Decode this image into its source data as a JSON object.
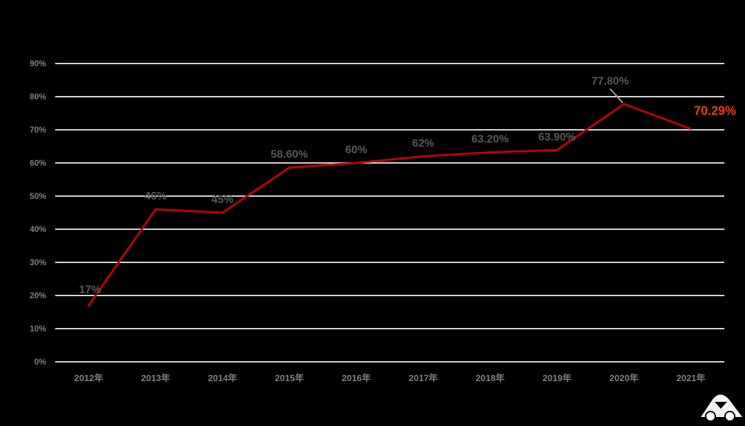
{
  "chart_data": {
    "type": "line",
    "categories": [
      "2012年",
      "2013年",
      "2014年",
      "2015年",
      "2016年",
      "2017年",
      "2018年",
      "2019年",
      "2020年",
      "2021年"
    ],
    "series": [
      {
        "values": [
          17,
          46,
          45,
          58.6,
          60,
          62,
          63.2,
          63.9,
          77.8,
          70.29
        ],
        "data_labels": [
          "17%",
          "46%",
          "45%",
          "58.60%",
          "60%",
          "62%",
          "63.20%",
          "63.90%",
          "77.80%",
          "70.29%"
        ]
      }
    ],
    "ylim": [
      0,
      90
    ],
    "yticks": [
      "0%",
      "10%",
      "20%",
      "30%",
      "40%",
      "50%",
      "60%",
      "70%",
      "80%",
      "90%"
    ],
    "grid": true,
    "legend": "none",
    "highlight_index": 9,
    "colors": {
      "background": "#000000",
      "line": "#c00000",
      "gridline": "#d9d9d9",
      "tick_label": "#7f7f7f",
      "data_label": "#595959",
      "highlight_label": "#e8410a"
    }
  },
  "watermark": {
    "icon": "car-logo-icon"
  }
}
